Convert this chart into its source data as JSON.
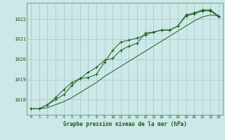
{
  "title": "Graphe pression niveau de la mer (hPa)",
  "background_color": "#cde8e8",
  "plot_bg_color": "#cde8e8",
  "grid_color": "#aacccc",
  "line_color": "#1a5c1a",
  "border_color": "#7aaa8a",
  "x_ticks": [
    0,
    1,
    2,
    3,
    4,
    5,
    6,
    7,
    8,
    9,
    10,
    11,
    12,
    13,
    14,
    15,
    16,
    17,
    18,
    19,
    20,
    21,
    22,
    23
  ],
  "y_ticks": [
    1018,
    1019,
    1020,
    1021,
    1022
  ],
  "ylim": [
    1017.25,
    1022.8
  ],
  "xlim": [
    -0.5,
    23.5
  ],
  "series1_x": [
    0,
    1,
    2,
    3,
    4,
    5,
    6,
    7,
    8,
    9,
    10,
    11,
    12,
    13,
    14,
    15,
    16,
    17,
    18,
    19,
    20,
    21,
    22,
    23
  ],
  "series1_y": [
    1017.55,
    1017.55,
    1017.75,
    1018.1,
    1018.5,
    1018.85,
    1019.05,
    1019.35,
    1019.6,
    1019.95,
    1020.05,
    1020.45,
    1020.65,
    1020.8,
    1021.3,
    1021.35,
    1021.45,
    1021.45,
    1021.65,
    1022.2,
    1022.3,
    1022.45,
    1022.45,
    1022.15
  ],
  "series2_x": [
    0,
    1,
    2,
    3,
    4,
    5,
    6,
    7,
    8,
    9,
    10,
    11,
    12,
    13,
    14,
    15,
    16,
    17,
    18,
    19,
    20,
    21,
    22,
    23
  ],
  "series2_y": [
    1017.55,
    1017.55,
    1017.75,
    1018.0,
    1018.25,
    1018.7,
    1019.05,
    1019.1,
    1019.25,
    1019.85,
    1020.45,
    1020.85,
    1020.95,
    1021.05,
    1021.2,
    1021.35,
    1021.45,
    1021.45,
    1021.65,
    1022.15,
    1022.25,
    1022.4,
    1022.4,
    1022.1
  ],
  "series3_x": [
    0,
    1,
    2,
    3,
    4,
    5,
    6,
    7,
    8,
    9,
    10,
    11,
    12,
    13,
    14,
    15,
    16,
    17,
    18,
    19,
    20,
    21,
    22,
    23
  ],
  "series3_y": [
    1017.55,
    1017.55,
    1017.6,
    1017.75,
    1017.9,
    1018.1,
    1018.35,
    1018.6,
    1018.85,
    1019.15,
    1019.4,
    1019.65,
    1019.9,
    1020.15,
    1020.4,
    1020.65,
    1020.9,
    1021.15,
    1021.4,
    1021.65,
    1021.9,
    1022.1,
    1022.2,
    1022.15
  ]
}
